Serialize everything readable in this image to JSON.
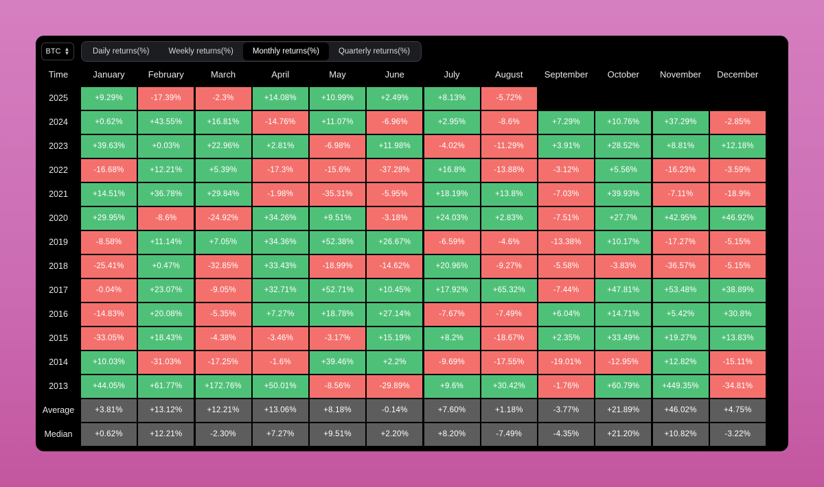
{
  "asset_selector": {
    "label": "BTC",
    "icon": "chevron-up-down-icon"
  },
  "tabs": [
    {
      "label": "Daily returns(%)",
      "active": false
    },
    {
      "label": "Weekly returns(%)",
      "active": false
    },
    {
      "label": "Monthly returns(%)",
      "active": true
    },
    {
      "label": "Quarterly returns(%)",
      "active": false
    }
  ],
  "table": {
    "time_header": "Time",
    "months": [
      "January",
      "February",
      "March",
      "April",
      "May",
      "June",
      "July",
      "August",
      "September",
      "October",
      "November",
      "December"
    ],
    "rows": [
      {
        "label": "2025",
        "values": [
          "+9.29%",
          "-17.39%",
          "-2.3%",
          "+14.08%",
          "+10.99%",
          "+2.49%",
          "+8.13%",
          "-5.72%",
          "",
          "",
          "",
          ""
        ]
      },
      {
        "label": "2024",
        "values": [
          "+0.62%",
          "+43.55%",
          "+16.81%",
          "-14.76%",
          "+11.07%",
          "-6.96%",
          "+2.95%",
          "-8.6%",
          "+7.29%",
          "+10.76%",
          "+37.29%",
          "-2.85%"
        ]
      },
      {
        "label": "2023",
        "values": [
          "+39.63%",
          "+0.03%",
          "+22.96%",
          "+2.81%",
          "-6.98%",
          "+11.98%",
          "-4.02%",
          "-11.29%",
          "+3.91%",
          "+28.52%",
          "+8.81%",
          "+12.18%"
        ]
      },
      {
        "label": "2022",
        "values": [
          "-16.68%",
          "+12.21%",
          "+5.39%",
          "-17.3%",
          "-15.6%",
          "-37.28%",
          "+16.8%",
          "-13.88%",
          "-3.12%",
          "+5.56%",
          "-16.23%",
          "-3.59%"
        ]
      },
      {
        "label": "2021",
        "values": [
          "+14.51%",
          "+36.78%",
          "+29.84%",
          "-1.98%",
          "-35.31%",
          "-5.95%",
          "+18.19%",
          "+13.8%",
          "-7.03%",
          "+39.93%",
          "-7.11%",
          "-18.9%"
        ]
      },
      {
        "label": "2020",
        "values": [
          "+29.95%",
          "-8.6%",
          "-24.92%",
          "+34.26%",
          "+9.51%",
          "-3.18%",
          "+24.03%",
          "+2.83%",
          "-7.51%",
          "+27.7%",
          "+42.95%",
          "+46.92%"
        ]
      },
      {
        "label": "2019",
        "values": [
          "-8.58%",
          "+11.14%",
          "+7.05%",
          "+34.36%",
          "+52.38%",
          "+26.67%",
          "-6.59%",
          "-4.6%",
          "-13.38%",
          "+10.17%",
          "-17.27%",
          "-5.15%"
        ]
      },
      {
        "label": "2018",
        "values": [
          "-25.41%",
          "+0.47%",
          "-32.85%",
          "+33.43%",
          "-18.99%",
          "-14.62%",
          "+20.96%",
          "-9.27%",
          "-5.58%",
          "-3.83%",
          "-36.57%",
          "-5.15%"
        ]
      },
      {
        "label": "2017",
        "values": [
          "-0.04%",
          "+23.07%",
          "-9.05%",
          "+32.71%",
          "+52.71%",
          "+10.45%",
          "+17.92%",
          "+65.32%",
          "-7.44%",
          "+47.81%",
          "+53.48%",
          "+38.89%"
        ]
      },
      {
        "label": "2016",
        "values": [
          "-14.83%",
          "+20.08%",
          "-5.35%",
          "+7.27%",
          "+18.78%",
          "+27.14%",
          "-7.67%",
          "-7.49%",
          "+6.04%",
          "+14.71%",
          "+5.42%",
          "+30.8%"
        ]
      },
      {
        "label": "2015",
        "values": [
          "-33.05%",
          "+18.43%",
          "-4.38%",
          "-3.46%",
          "-3.17%",
          "+15.19%",
          "+8.2%",
          "-18.67%",
          "+2.35%",
          "+33.49%",
          "+19.27%",
          "+13.83%"
        ]
      },
      {
        "label": "2014",
        "values": [
          "+10.03%",
          "-31.03%",
          "-17.25%",
          "-1.6%",
          "+39.46%",
          "+2.2%",
          "-9.69%",
          "-17.55%",
          "-19.01%",
          "-12.95%",
          "+12.82%",
          "-15.11%"
        ]
      },
      {
        "label": "2013",
        "values": [
          "+44.05%",
          "+61.77%",
          "+172.76%",
          "+50.01%",
          "-8.56%",
          "-29.89%",
          "+9.6%",
          "+30.42%",
          "-1.76%",
          "+60.79%",
          "+449.35%",
          "-34.81%"
        ]
      },
      {
        "label": "Average",
        "stat": true,
        "values": [
          "+3.81%",
          "+13.12%",
          "+12.21%",
          "+13.06%",
          "+8.18%",
          "-0.14%",
          "+7.60%",
          "+1.18%",
          "-3.77%",
          "+21.89%",
          "+46.02%",
          "+4.75%"
        ]
      },
      {
        "label": "Median",
        "stat": true,
        "values": [
          "+0.62%",
          "+12.21%",
          "-2.30%",
          "+7.27%",
          "+9.51%",
          "+2.20%",
          "+8.20%",
          "-7.49%",
          "-4.35%",
          "+21.20%",
          "+10.82%",
          "-3.22%"
        ]
      }
    ]
  },
  "colors": {
    "positive": "#4fc078",
    "negative": "#f4706c",
    "stat": "#5d5d5d",
    "panel_bg": "#000000"
  }
}
